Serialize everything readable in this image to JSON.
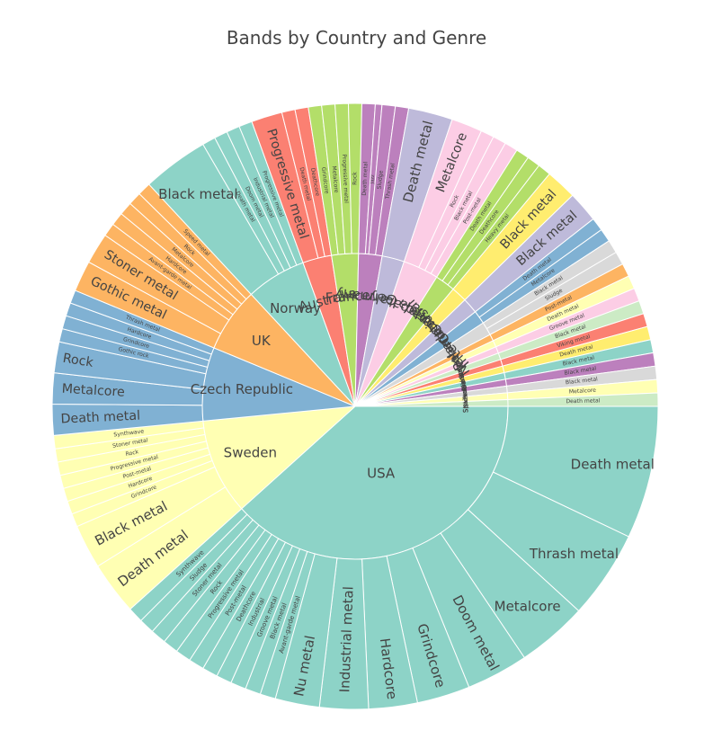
{
  "chart_data": {
    "type": "sunburst",
    "title": "Bands by Country and Genre",
    "countries": [
      {
        "name": "USA",
        "color": "#8dd3c7",
        "genres": [
          [
            "Death metal",
            60
          ],
          [
            "Thrash metal",
            40
          ],
          [
            "Metalcore",
            32
          ],
          [
            "Doom metal",
            28
          ],
          [
            "Grindcore",
            24
          ],
          [
            "Hardcore",
            22
          ],
          [
            "Industrial metal",
            22
          ],
          [
            "Nu metal",
            20
          ],
          [
            "Avant-garde metal",
            7
          ],
          [
            "Black metal",
            7
          ],
          [
            "Groove metal",
            7
          ],
          [
            "Industrial",
            7
          ],
          [
            "Deathcore",
            7
          ],
          [
            "Post-metal",
            7
          ],
          [
            "Progressive metal",
            7
          ],
          [
            "Rock",
            7
          ],
          [
            "Stoner metal",
            7
          ],
          [
            "Sludge",
            7
          ],
          [
            "Synthwave",
            7
          ]
        ]
      },
      {
        "name": "Sweden",
        "color": "#ffffb3",
        "genres": [
          [
            "Death metal",
            24
          ],
          [
            "Black metal",
            20
          ],
          [
            "Grindcore",
            6
          ],
          [
            "Hardcore",
            6
          ],
          [
            "Post-metal",
            6
          ],
          [
            "Progressive metal",
            6
          ],
          [
            "Rock",
            6
          ],
          [
            "Stoner metal",
            6
          ],
          [
            "Synthwave",
            6
          ]
        ]
      },
      {
        "name": "Czech Republic",
        "color": "#80b1d3",
        "genres": [
          [
            "Death metal",
            14
          ],
          [
            "Metalcore",
            14
          ],
          [
            "Rock",
            14
          ],
          [
            "Gothic rock",
            6
          ],
          [
            "Grindcore",
            6
          ],
          [
            "Hardcore",
            6
          ],
          [
            "Thrash metal",
            6
          ]
        ]
      },
      {
        "name": "UK",
        "color": "#fdb462",
        "genres": [
          [
            "Gothic metal",
            14
          ],
          [
            "Stoner metal",
            14
          ],
          [
            "Avant-garde metal",
            6
          ],
          [
            "Hardcore",
            6
          ],
          [
            "Metalcore",
            6
          ],
          [
            "Rock",
            6
          ],
          [
            "Speed metal",
            6
          ]
        ]
      },
      {
        "name": "Norway",
        "color": "#8dd3c7",
        "genres": [
          [
            "Black metal",
            30
          ],
          [
            "Death metal",
            6
          ],
          [
            "Doom metal",
            6
          ],
          [
            "Industrial metal",
            6
          ],
          [
            "Progressive metal",
            6
          ]
        ]
      },
      {
        "name": "Australia",
        "color": "#fb8072",
        "genres": [
          [
            "Progressive metal",
            14
          ],
          [
            "Death metal",
            6
          ],
          [
            "Deathcore",
            6
          ]
        ]
      },
      {
        "name": "France",
        "color": "#b3de69",
        "genres": [
          [
            "Grindcore",
            6
          ],
          [
            "Metalcore",
            6
          ],
          [
            "Progressive metal",
            6
          ],
          [
            "Rock",
            6
          ]
        ]
      },
      {
        "name": "Germany",
        "color": "#bc80bd",
        "genres": [
          [
            "Death metal",
            6
          ],
          [
            "Jazz",
            3
          ],
          [
            "Sludge",
            6
          ],
          [
            "Thrash metal",
            6
          ]
        ]
      },
      {
        "name": "Italy",
        "color": "#bebada",
        "genres": [
          [
            "Death metal",
            20
          ]
        ]
      },
      {
        "name": "Japan",
        "color": "#fccde5",
        "genres": [
          [
            "Metalcore",
            14
          ],
          [
            "Rock",
            6
          ],
          [
            "Black metal",
            6
          ],
          [
            "Post-metal",
            6
          ]
        ]
      },
      {
        "name": "Canada",
        "color": "#b3de69",
        "genres": [
          [
            "Death metal",
            6
          ],
          [
            "Deathcore",
            6
          ],
          [
            "Heavy metal",
            6
          ]
        ]
      },
      {
        "name": "Greece",
        "color": "#ffed6f",
        "genres": [
          [
            "Black metal",
            14
          ]
        ]
      },
      {
        "name": "International",
        "color": "#bebada",
        "genres": [
          [
            "Black metal",
            14
          ]
        ]
      },
      {
        "name": "Netherlands",
        "color": "#80b1d3",
        "genres": [
          [
            "Death metal",
            6
          ],
          [
            "Metalcore",
            6
          ]
        ]
      },
      {
        "name": "Poland",
        "color": "#d9d9d9",
        "genres": [
          [
            "Black metal",
            6
          ],
          [
            "Sludge",
            6
          ]
        ]
      },
      {
        "name": "",
        "color": "#fdb462",
        "genres": [
          [
            "Post-metal",
            6
          ]
        ]
      },
      {
        "name": "",
        "color": "#ffffb3",
        "genres": [
          [
            "Death metal",
            6
          ]
        ]
      },
      {
        "name": "Belgium",
        "color": "#fccde5",
        "genres": [
          [
            "Groove metal",
            6
          ]
        ]
      },
      {
        "name": "Brazil",
        "color": "#ccebc5",
        "genres": [
          [
            "Black metal",
            6
          ]
        ]
      },
      {
        "name": "Denmark",
        "color": "#fb8072",
        "genres": [
          [
            "Viking metal",
            6
          ]
        ]
      },
      {
        "name": "Finland",
        "color": "#ffed6f",
        "genres": [
          [
            "Death metal",
            6
          ]
        ]
      },
      {
        "name": "Iceland",
        "color": "#8dd3c7",
        "genres": [
          [
            "Black metal",
            6
          ]
        ]
      },
      {
        "name": "Russia",
        "color": "#bc80bd",
        "genres": [
          [
            "Black metal",
            6
          ]
        ]
      },
      {
        "name": "Slovakia",
        "color": "#d9d9d9",
        "genres": [
          [
            "Black metal",
            6
          ]
        ]
      },
      {
        "name": "Slovenia",
        "color": "#ffffb3",
        "genres": [
          [
            "Metalcore",
            6
          ]
        ]
      },
      {
        "name": "Spain",
        "color": "#ccebc5",
        "genres": [
          [
            "Death metal",
            6
          ]
        ]
      }
    ]
  }
}
